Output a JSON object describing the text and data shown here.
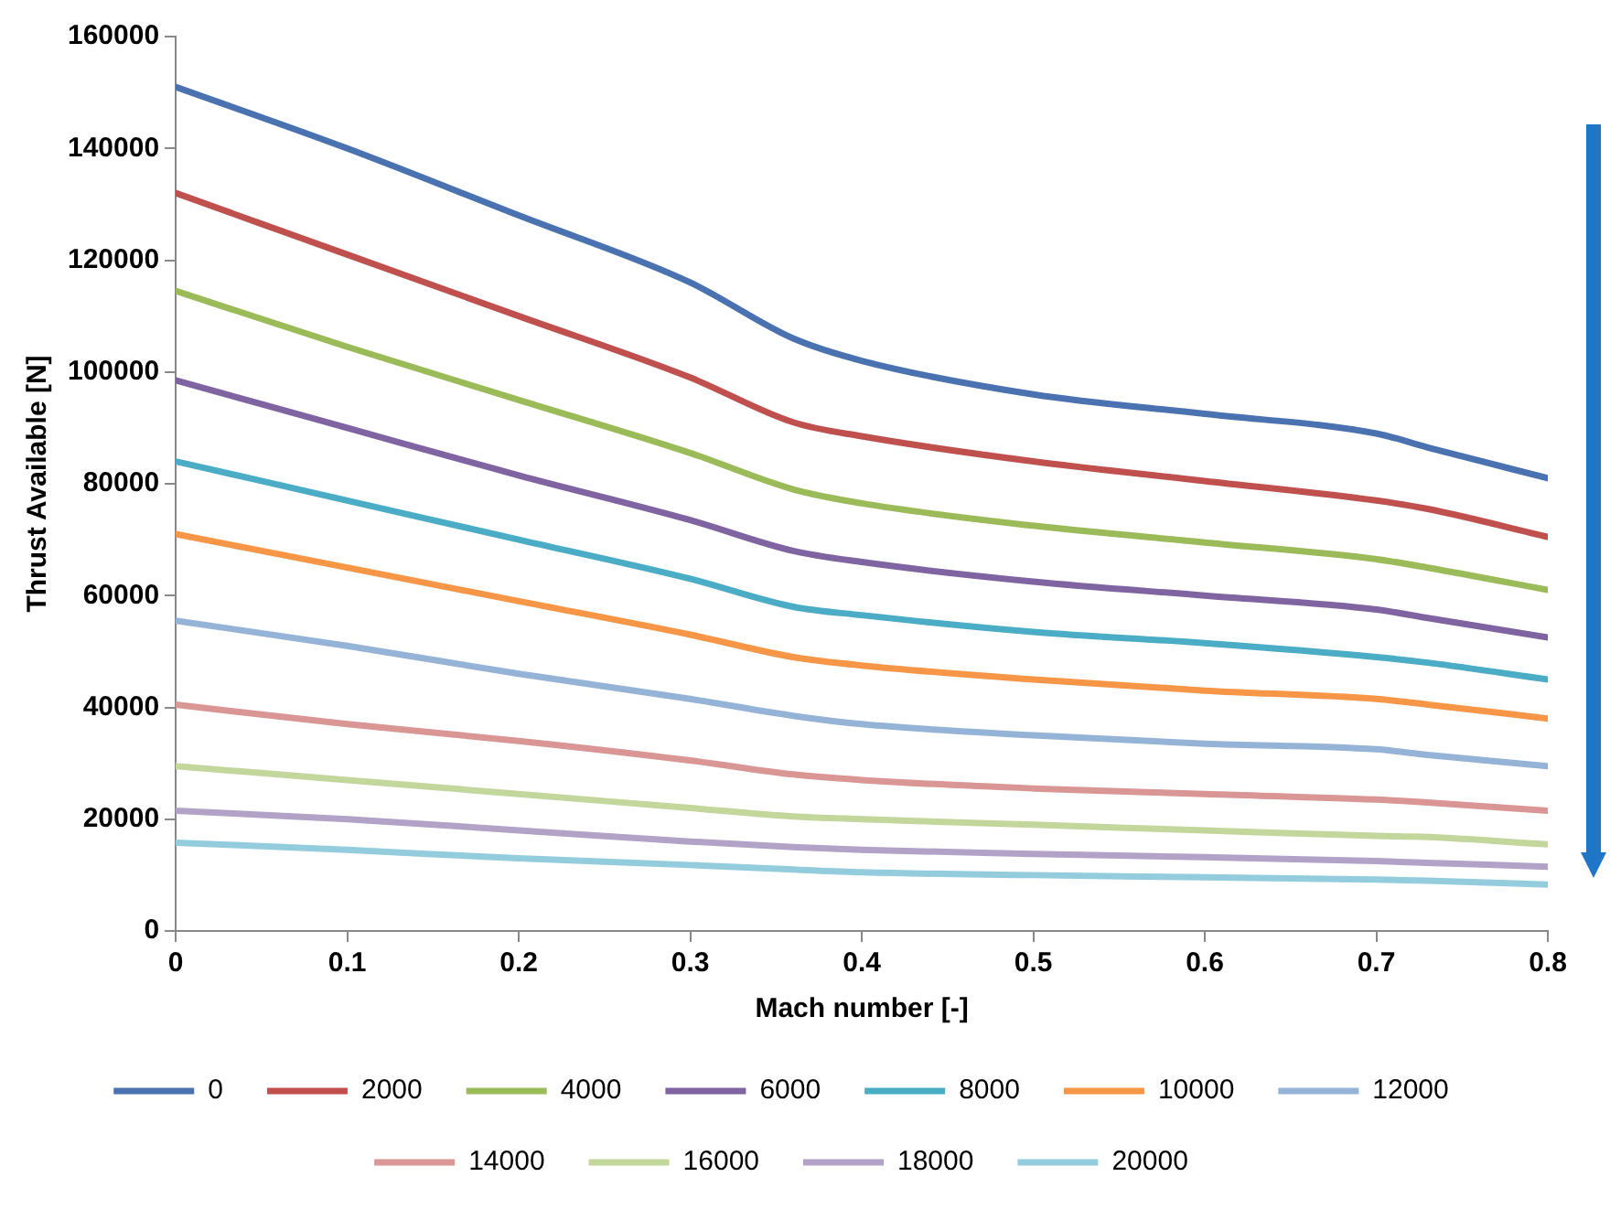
{
  "chart_data": {
    "type": "line",
    "xlabel": "Mach number [-]",
    "ylabel": "Thrust Available [N]",
    "x": [
      0,
      0.1,
      0.2,
      0.3,
      0.36,
      0.4,
      0.5,
      0.6,
      0.7,
      0.73,
      0.8
    ],
    "xlim": [
      0,
      0.8
    ],
    "xticks": [
      0,
      0.1,
      0.2,
      0.3,
      0.4,
      0.5,
      0.6,
      0.7,
      0.8
    ],
    "ylim": [
      0,
      160000
    ],
    "yticks": [
      0,
      20000,
      40000,
      60000,
      80000,
      100000,
      120000,
      140000,
      160000
    ],
    "grid": false,
    "legend": "bottom",
    "marker": "none",
    "line_style": "solid",
    "series": [
      {
        "name": "0",
        "color": "#4a72b0",
        "values": [
          151000,
          140000,
          128000,
          116000,
          106000,
          102000,
          96000,
          92500,
          89000,
          86500,
          81000
        ]
      },
      {
        "name": "2000",
        "color": "#c0504d",
        "values": [
          132000,
          121000,
          110000,
          99000,
          91000,
          88500,
          84000,
          80500,
          77000,
          75500,
          70500
        ]
      },
      {
        "name": "4000",
        "color": "#9bbb59",
        "values": [
          114500,
          104500,
          95000,
          85500,
          79000,
          76500,
          72500,
          69500,
          66500,
          65000,
          61000
        ]
      },
      {
        "name": "6000",
        "color": "#8064a2",
        "values": [
          98500,
          90000,
          81500,
          73500,
          68000,
          66000,
          62500,
          60000,
          57500,
          56000,
          52500
        ]
      },
      {
        "name": "8000",
        "color": "#4bacc6",
        "values": [
          84000,
          77000,
          70000,
          63000,
          58000,
          56500,
          53500,
          51500,
          49000,
          48000,
          45000
        ]
      },
      {
        "name": "10000",
        "color": "#f79646",
        "values": [
          71000,
          65000,
          59000,
          53000,
          49000,
          47500,
          45000,
          43000,
          41500,
          40500,
          38000
        ]
      },
      {
        "name": "12000",
        "color": "#95b3d7",
        "values": [
          55500,
          51000,
          46000,
          41500,
          38500,
          37000,
          35000,
          33500,
          32500,
          31500,
          29500
        ]
      },
      {
        "name": "14000",
        "color": "#d99694",
        "values": [
          40500,
          37000,
          34000,
          30500,
          28000,
          27000,
          25500,
          24500,
          23500,
          23000,
          21500
        ]
      },
      {
        "name": "16000",
        "color": "#c3d69b",
        "values": [
          29500,
          27000,
          24500,
          22000,
          20500,
          20000,
          19000,
          18000,
          17000,
          16800,
          15500
        ]
      },
      {
        "name": "18000",
        "color": "#b3a2c7",
        "values": [
          21500,
          20000,
          18000,
          16000,
          15000,
          14500,
          13800,
          13200,
          12500,
          12200,
          11500
        ]
      },
      {
        "name": "20000",
        "color": "#93cddd",
        "values": [
          15800,
          14500,
          13000,
          11800,
          11000,
          10500,
          10000,
          9600,
          9200,
          9000,
          8300
        ]
      }
    ]
  }
}
